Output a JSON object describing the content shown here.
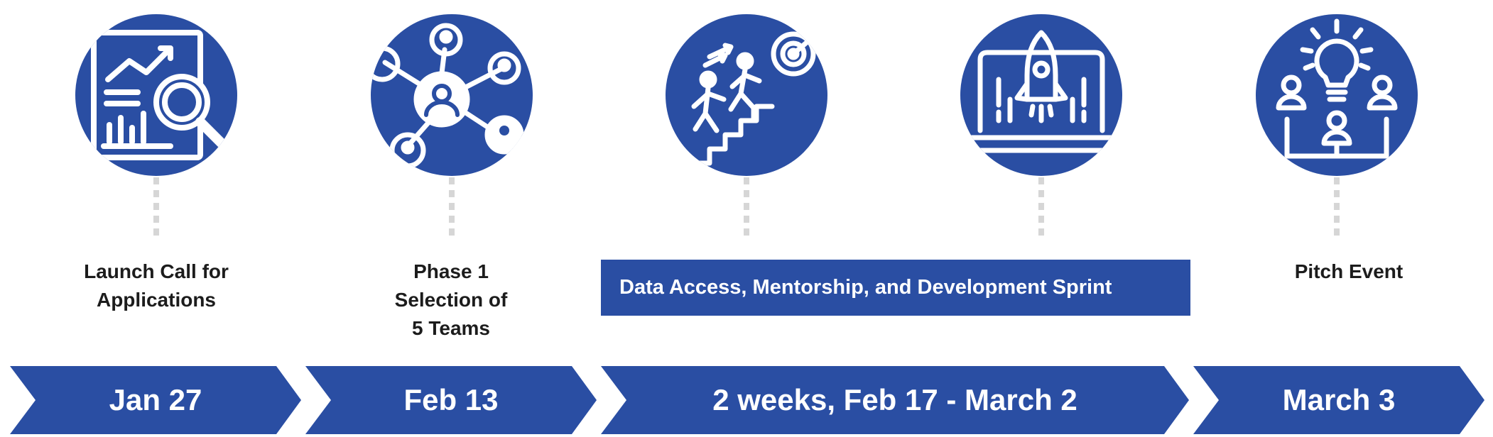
{
  "milestones": [
    {
      "icon": "analytics-magnifier-icon",
      "label": "Launch Call for\nApplications",
      "date": "Jan 27"
    },
    {
      "icon": "network-people-icon",
      "label": "Phase 1\nSelection of\n5 Teams",
      "date": "Feb 13"
    },
    {
      "icon": "climbing-stairs-target-icon",
      "label": "",
      "date": ""
    },
    {
      "icon": "rocket-laptop-icon",
      "label": "",
      "date": ""
    },
    {
      "icon": "idea-team-icon",
      "label": "Pitch Event",
      "date": "March 3"
    }
  ],
  "sprint": {
    "label": "Data Access, Mentorship, and Development Sprint",
    "date": "2 weeks, Feb 17 - March 2"
  },
  "colors": {
    "primary": "#2a4ea3",
    "connector": "#d6d6d6",
    "text": "#1c1c1c"
  }
}
